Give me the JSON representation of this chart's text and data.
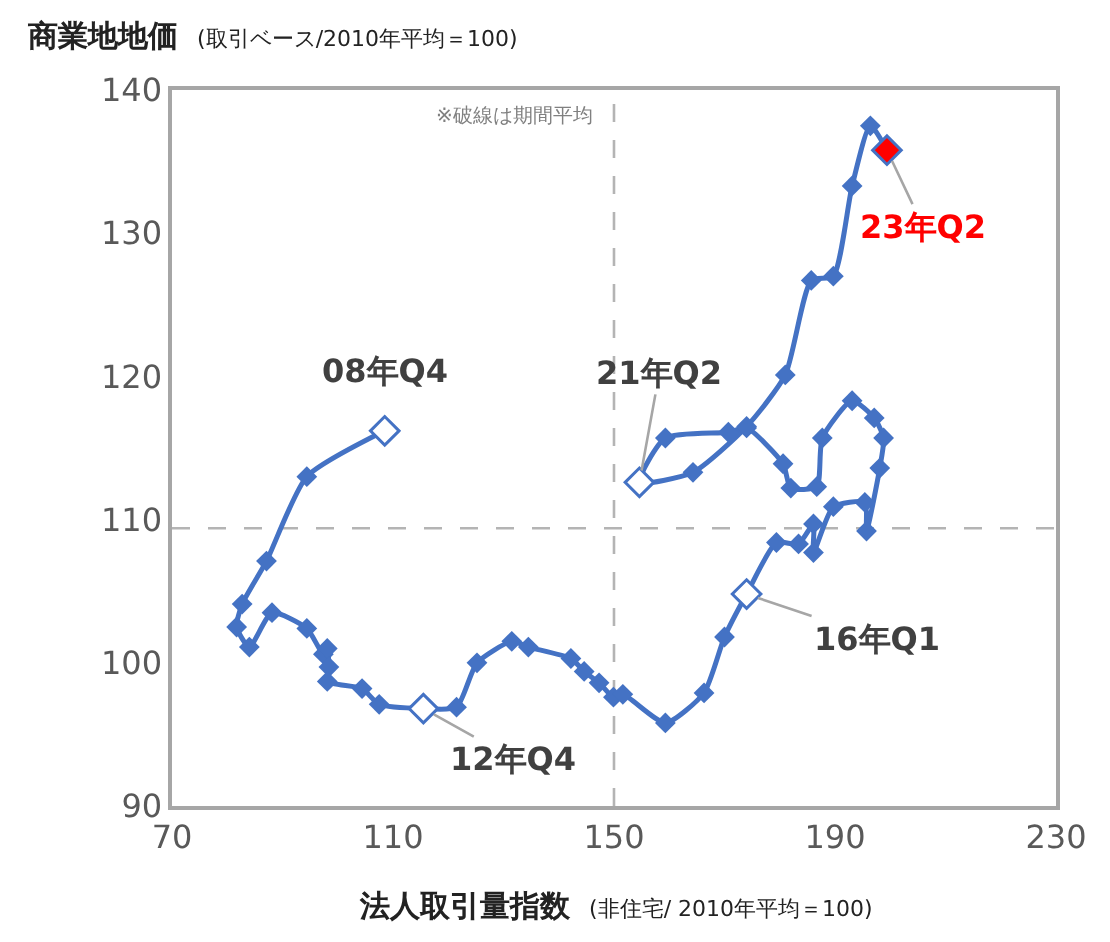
{
  "chart_data": {
    "type": "line",
    "title": "商業地地価",
    "subtitle": "(取引ベース/2010年平均＝100)",
    "xlabel": "法人取引量指数",
    "ylabel": null,
    "annotations": [
      {
        "text": "08年Q4",
        "x": 108.5,
        "y": 116.2
      },
      {
        "text": "12年Q4",
        "x": 115.5,
        "y": 96.8
      },
      {
        "text": "16年Q1",
        "x": 174.0,
        "y": 104.8
      },
      {
        "text": "21年Q2",
        "x": 154.6,
        "y": 112.6
      },
      {
        "text": "23年Q2",
        "x": 199.4,
        "y": 135.8
      },
      "※破線は期間平均",
      "(非住宅/ 2010年平均＝100)"
    ],
    "xlim": [
      70,
      230
    ],
    "xticks": [
      70,
      110,
      150,
      190,
      230
    ],
    "ylim": [
      90,
      140
    ],
    "yticks": [
      90,
      100,
      110,
      120,
      130,
      140
    ],
    "grid": false,
    "marker": "diamond",
    "line_style": "solid",
    "ref_lines": [
      {
        "axis": "x",
        "value": 150,
        "label": null,
        "color": "#b4b4b4",
        "line_style": "dashed"
      },
      {
        "axis": "y",
        "value": 109.4,
        "label": null,
        "color": "#b4b4b4",
        "line_style": "dashed"
      }
    ],
    "series": [
      {
        "color": "#4472c4",
        "x": [
          108.5,
          94.4,
          87.1,
          82.7,
          81.7,
          84.0,
          88.1,
          94.4,
          97.4,
          98.1,
          98.4,
          98.1,
          104.4,
          107.5,
          115.5,
          121.5,
          125.2,
          131.5,
          134.5,
          142.2,
          144.6,
          147.3,
          149.9,
          151.6,
          159.3,
          166.3,
          170.0,
          174.0,
          179.4,
          183.4,
          186.1,
          186.1,
          189.7,
          195.4,
          195.7,
          198.1,
          198.8,
          197.1,
          193.1,
          187.7,
          186.7,
          182.0,
          180.6,
          174.0,
          170.7,
          159.3,
          154.6,
          164.3,
          174.0,
          181.0,
          185.7,
          189.7,
          193.1,
          196.4,
          199.4
        ],
        "values": [
          116.2,
          113.0,
          107.1,
          104.1,
          102.5,
          101.1,
          103.5,
          102.4,
          100.6,
          101.0,
          99.7,
          98.7,
          98.2,
          97.1,
          96.8,
          96.9,
          100.0,
          101.5,
          101.1,
          100.3,
          99.4,
          98.6,
          97.6,
          97.8,
          95.8,
          97.9,
          101.8,
          104.8,
          108.4,
          108.3,
          109.7,
          107.7,
          110.9,
          111.2,
          109.2,
          113.6,
          115.7,
          117.1,
          118.3,
          115.7,
          112.3,
          112.2,
          113.9,
          116.4,
          116.1,
          115.7,
          112.6,
          113.3,
          116.5,
          120.1,
          126.7,
          127.0,
          133.3,
          137.5,
          135.8
        ]
      },
      {
        "type": "scatter",
        "color": "#4472c4",
        "x": [
          108.5,
          115.5,
          174.0,
          154.6,
          199.4
        ],
        "values": [
          116.2,
          96.8,
          104.8,
          112.6,
          135.8
        ],
        "colors": [
          "#ffffff",
          "#ffffff",
          "#ffffff",
          "#ffffff",
          "#ff0000"
        ]
      }
    ]
  }
}
